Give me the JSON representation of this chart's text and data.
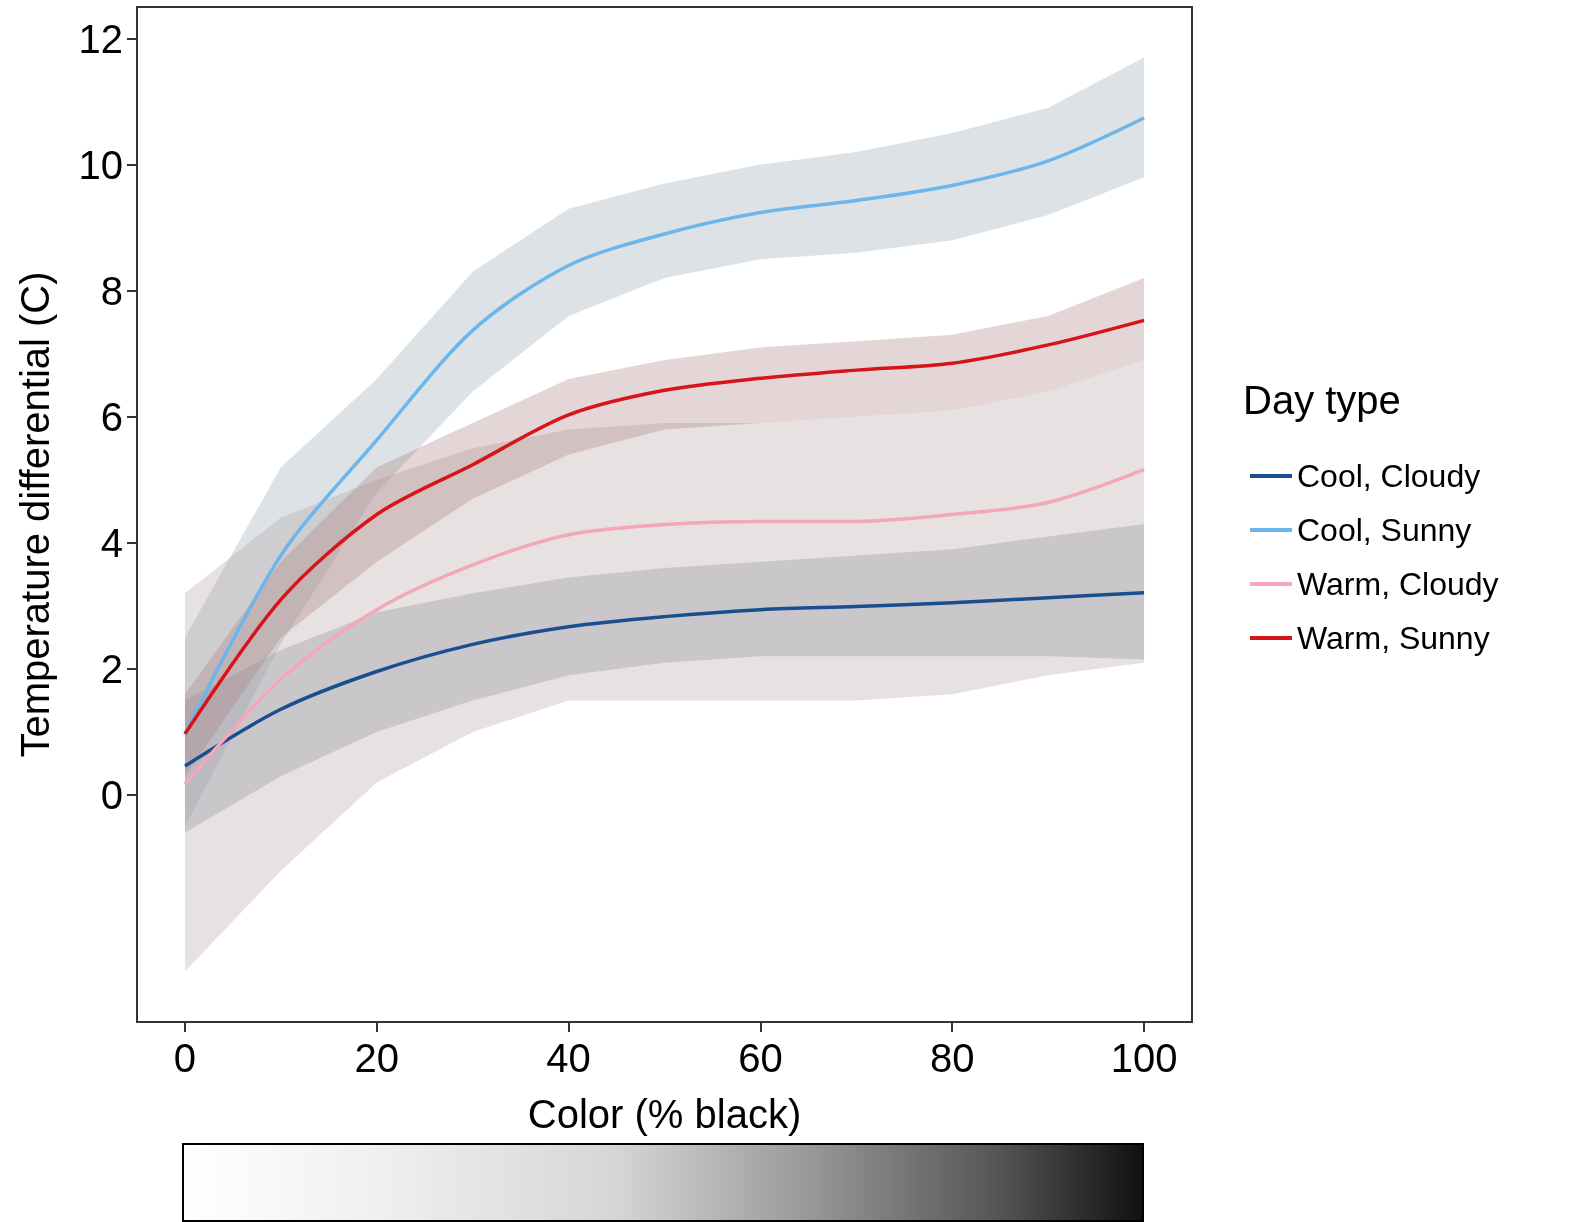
{
  "chart_data": {
    "type": "line",
    "xlabel": "Color (% black)",
    "ylabel": "Temperature differential (C)",
    "legend_title": "Day type",
    "legend": "right",
    "x": [
      0,
      10,
      20,
      30,
      40,
      50,
      60,
      70,
      80,
      90,
      100
    ],
    "xlim": [
      -5,
      105
    ],
    "xticks": [
      0,
      20,
      40,
      60,
      80,
      100
    ],
    "ylim": [
      -3.6,
      12.5
    ],
    "yticks": [
      0,
      2,
      4,
      6,
      8,
      10,
      12
    ],
    "series": [
      {
        "name": "Cool, Cloudy",
        "color": "#1a4f8f",
        "values": [
          0.46,
          1.36,
          1.96,
          2.39,
          2.67,
          2.83,
          2.94,
          2.99,
          3.05,
          3.13,
          3.21
        ],
        "lower": [
          -0.6,
          0.3,
          1.0,
          1.5,
          1.9,
          2.1,
          2.2,
          2.2,
          2.2,
          2.2,
          2.15
        ],
        "upper": [
          1.5,
          2.3,
          2.9,
          3.2,
          3.45,
          3.6,
          3.7,
          3.8,
          3.9,
          4.1,
          4.3
        ]
      },
      {
        "name": "Cool, Sunny",
        "color": "#6cb6ec",
        "values": [
          0.97,
          3.8,
          5.63,
          7.37,
          8.4,
          8.9,
          9.24,
          9.43,
          9.67,
          10.06,
          10.74
        ],
        "lower": [
          -0.5,
          2.4,
          4.8,
          6.4,
          7.6,
          8.2,
          8.5,
          8.6,
          8.8,
          9.2,
          9.8
        ],
        "upper": [
          2.5,
          5.2,
          6.6,
          8.3,
          9.3,
          9.7,
          10.0,
          10.2,
          10.5,
          10.9,
          11.7
        ]
      },
      {
        "name": "Warm, Cloudy",
        "color": "#f4a7b9",
        "values": [
          0.17,
          1.84,
          2.94,
          3.65,
          4.13,
          4.29,
          4.34,
          4.34,
          4.45,
          4.64,
          5.16
        ],
        "lower": [
          -2.8,
          -1.2,
          0.2,
          1.0,
          1.5,
          1.5,
          1.5,
          1.5,
          1.6,
          1.9,
          2.1
        ],
        "upper": [
          3.2,
          4.4,
          5.0,
          5.5,
          5.8,
          5.9,
          5.9,
          6.0,
          6.1,
          6.4,
          6.9
        ]
      },
      {
        "name": "Warm, Sunny",
        "color": "#d7141a",
        "values": [
          0.97,
          3.1,
          4.45,
          5.24,
          6.03,
          6.42,
          6.61,
          6.74,
          6.85,
          7.14,
          7.53
        ],
        "lower": [
          0.3,
          2.5,
          3.7,
          4.7,
          5.4,
          5.8,
          5.9,
          6.0,
          6.1,
          6.4,
          6.9
        ],
        "upper": [
          1.6,
          3.7,
          5.2,
          5.9,
          6.6,
          6.9,
          7.1,
          7.2,
          7.3,
          7.6,
          8.2
        ]
      }
    ]
  }
}
